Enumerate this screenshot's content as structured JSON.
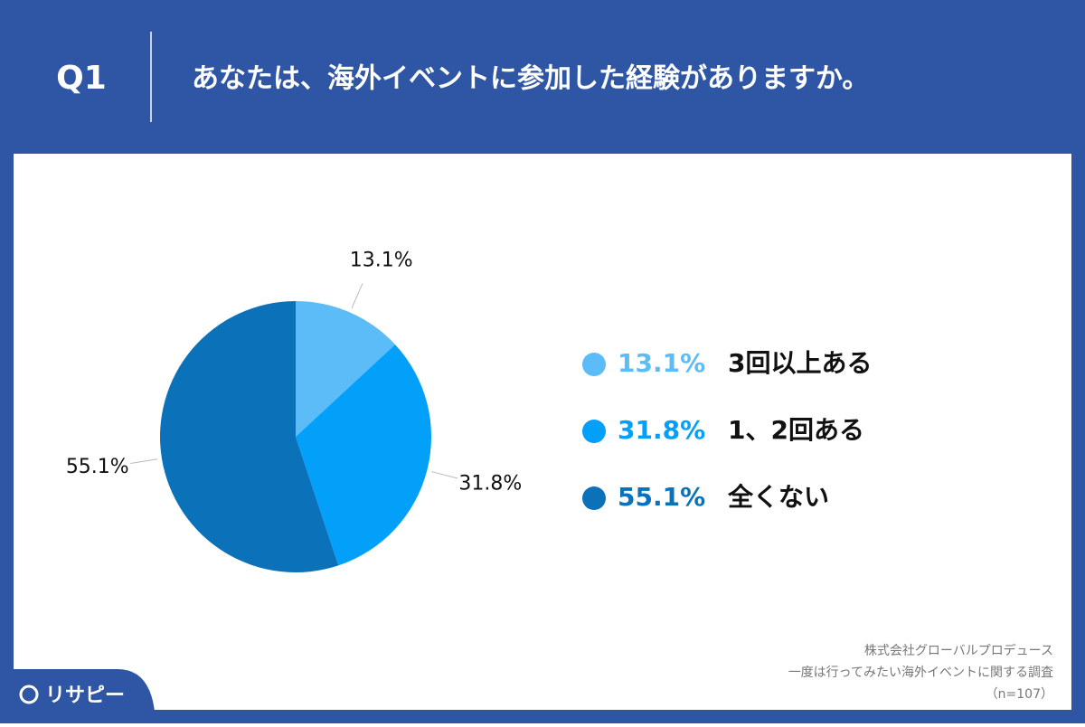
{
  "header": {
    "number": "Q1",
    "title": "あなたは、海外イベントに参加した経験がありますか。"
  },
  "chart_data": {
    "type": "pie",
    "categories": [
      "3回以上ある",
      "1、2回ある",
      "全くない"
    ],
    "values": [
      13.1,
      31.8,
      55.1
    ],
    "value_labels": [
      "13.1%",
      "31.8%",
      "55.1%"
    ],
    "colors": [
      "#5bbcf8",
      "#03a0fa",
      "#0b72ba"
    ]
  },
  "footer": {
    "lines": [
      "株式会社グローバルプロデュース",
      "一度は行ってみたい海外イベントに関する調査",
      "（n=107）"
    ]
  },
  "logo": "リサピー"
}
